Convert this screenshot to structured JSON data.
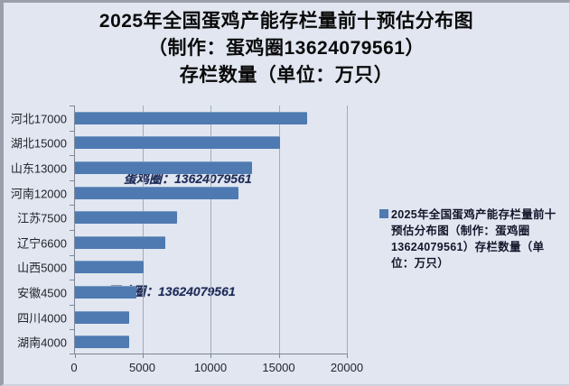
{
  "title": {
    "line1": "2025年全国蛋鸡产能存栏量前十预估分布图",
    "line2": "（制作：蛋鸡圈13624079561）",
    "line3": "存栏数量（单位：万只）"
  },
  "watermark": {
    "text": "蛋鸡圈：13624079561"
  },
  "legend": {
    "line1": "2025年全国蛋鸡产能存栏量前十",
    "line2": "预估分布图（制作：蛋鸡圈",
    "line3": "13624079561）存栏数量（单",
    "line4": "位：万只）"
  },
  "colors": {
    "bar": "#4e7ab1",
    "background": "#e1e6f0",
    "grid": "#a3abba",
    "axis": "#7e8796",
    "watermark": "#1c2a58"
  },
  "chart_data": {
    "type": "bar",
    "orientation": "horizontal",
    "title": "2025年全国蛋鸡产能存栏量前十预估分布图（制作：蛋鸡圈13624079561）存栏数量（单位：万只）",
    "categories": [
      "河北",
      "湖北",
      "山东",
      "河南",
      "江苏",
      "辽宁",
      "山西",
      "安徽",
      "四川",
      "湖南"
    ],
    "category_labels": [
      "河北17000",
      "湖北15000",
      "山东13000",
      "河南12000",
      "江苏7500",
      "辽宁6600",
      "山西5000",
      "安徽4500",
      "四川4000",
      "湖南4000"
    ],
    "values": [
      17000,
      15000,
      13000,
      12000,
      7500,
      6600,
      5000,
      4500,
      4000,
      4000
    ],
    "x_ticks": [
      0,
      5000,
      10000,
      15000,
      20000
    ],
    "xlim": [
      0,
      20000
    ],
    "grid": true,
    "legend_position": "right",
    "legend_label": "2025年全国蛋鸡产能存栏量前十预估分布图（制作：蛋鸡圈13624079561）存栏数量（单位：万只）"
  }
}
